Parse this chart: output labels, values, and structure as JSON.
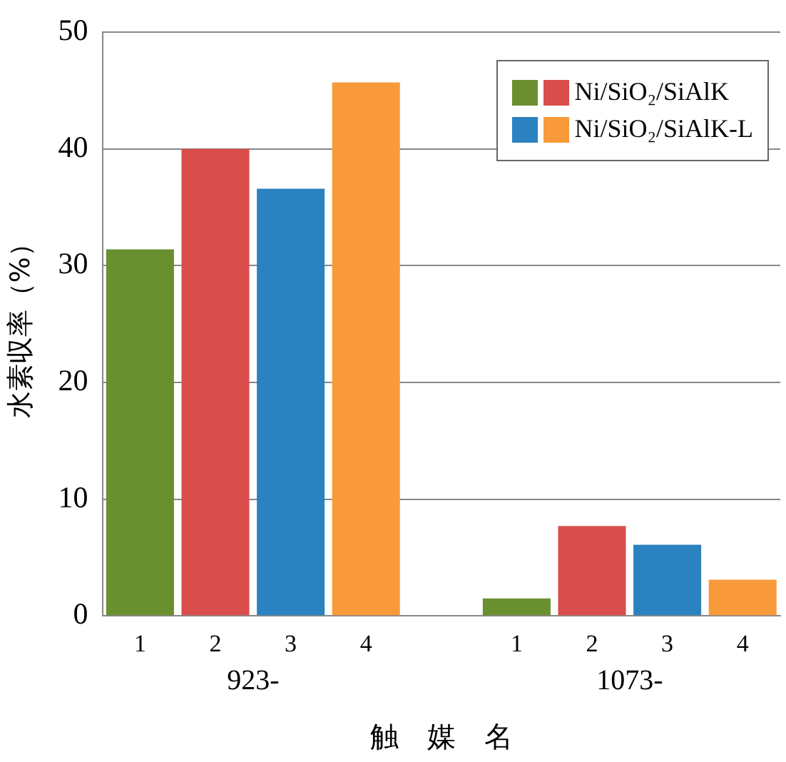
{
  "chart_data": {
    "type": "bar",
    "xlabel": "触　媒　名",
    "ylabel": "水素収率（%）",
    "categories": [
      "1",
      "2",
      "3",
      "4",
      null,
      "1",
      "2",
      "3",
      "4"
    ],
    "series": [
      {
        "name": "Ni/SiO₂/SiAlK",
        "colors": [
          "#6a8f2f",
          "#d94d4c",
          null,
          null,
          null,
          "#6a8f2f",
          "#d94d4c",
          null,
          null
        ],
        "values": [
          31.4,
          40.0,
          null,
          null,
          null,
          1.5,
          7.7,
          null,
          null
        ]
      },
      {
        "name": "Ni/SiO₂/SiAlK-L",
        "colors": [
          null,
          null,
          "#2b82c0",
          "#f99a3a",
          null,
          null,
          null,
          "#2b82c0",
          "#f99a3a"
        ],
        "values": [
          null,
          null,
          36.6,
          45.7,
          null,
          null,
          null,
          6.1,
          3.1
        ]
      }
    ],
    "annotations": [
      "923-",
      "1073-"
    ],
    "ylim": [
      0,
      50
    ],
    "yticks": [
      0,
      10,
      20,
      30,
      40,
      50
    ],
    "grid": "y",
    "legend": "top right"
  }
}
